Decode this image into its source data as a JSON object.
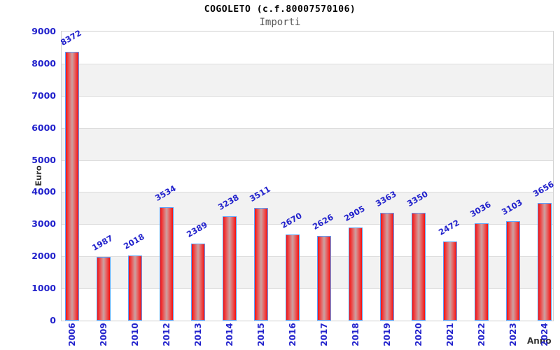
{
  "header": {
    "title": "COGOLETO (c.f.80007570106)",
    "subtitle": "Importi"
  },
  "chart_data": {
    "type": "bar",
    "title": "COGOLETO (c.f.80007570106)",
    "subtitle": "Importi",
    "categories": [
      "2006",
      "2009",
      "2010",
      "2012",
      "2013",
      "2014",
      "2015",
      "2016",
      "2017",
      "2018",
      "2019",
      "2020",
      "2021",
      "2022",
      "2023",
      "2024"
    ],
    "values": [
      8372,
      1987,
      2018,
      3534,
      2389,
      3238,
      3511,
      2670,
      2626,
      2905,
      3363,
      3350,
      2472,
      3036,
      3103,
      3656
    ],
    "xlabel": "Anno",
    "ylabel": "Euro",
    "ylim": [
      0,
      9000
    ],
    "ytick_step": 1000,
    "grid": "horizontal-bands",
    "legend": "none",
    "value_labels": "above-bars-rotated",
    "colors": {
      "bar_edge": "#f01010",
      "bar_center": "#c9a2a2",
      "bar_border": "#5aa0ff",
      "number_text": "#2222cc",
      "axis_title_text": "#333333",
      "band_gray": "#f2f2f2",
      "gridline": "#dddddd",
      "plot_border": "#cfcfcf",
      "title_text": "#000000",
      "subtitle_text": "#555555"
    }
  }
}
